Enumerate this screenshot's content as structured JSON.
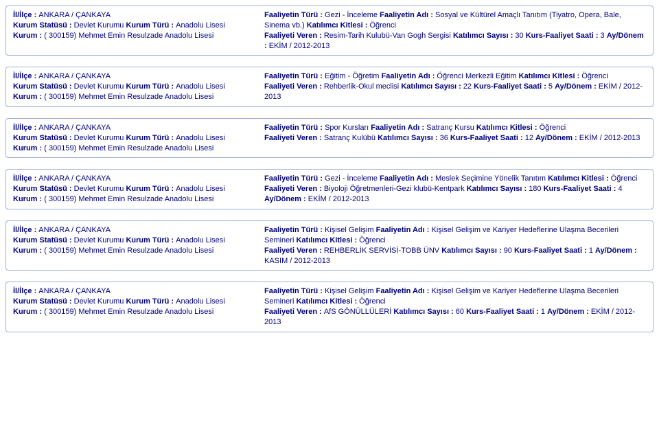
{
  "labels": {
    "il_ilce": "İl/İlçe : ",
    "kurum_statusu": "Kurum Statüsü : ",
    "kurum_turu": "Kurum Türü : ",
    "kurum": "Kurum : ",
    "faaliyetin_turu": "Faaliyetin Türü : ",
    "faaliyetin_adi": "Faaliyetin Adı : ",
    "katilimci_kitlesi": "Katılımcı Kitlesi : ",
    "faaliyeti_veren": "Faaliyeti Veren : ",
    "katilimci_sayisi": "Katılımcı Sayısı : ",
    "kurs_faaliyet_saati": "Kurs-Faaliyet Saati",
    "kurs_faaliyet_saati_colon": "Kurs-Faaliyet Saati : ",
    "ay_donem": "Ay/Dönem : "
  },
  "left_common": {
    "il_ilce": "ANKARA / ÇANKAYA",
    "kurum_statusu": "Devlet Kurumu ",
    "kurum_turu_val": "Anadolu Lisesi",
    "kurum_val": "( 300159) Mehmet Emin Resulzade Anadolu Lisesi"
  },
  "records": [
    {
      "faaliyetin_turu": "Gezi - İnceleme ",
      "faaliyetin_adi": "Sosyal ve Kültürel Amaçlı Tanıtım (Tiyatro, Opera, Bale, Sinema vb.) ",
      "katilimci_kitlesi": "Öğrenci",
      "faaliyeti_veren": "Resim-Tarih Kulubü-Van Gogh Sergisi ",
      "katilimci_sayisi": "30 ",
      "kurs_faaliyet_saati": "3 ",
      "ay_donem": "EKİM / 2012-2013",
      "style": "lead_colon"
    },
    {
      "faaliyetin_turu": "Eğitim - Öğretim ",
      "faaliyetin_adi": "Öğrenci Merkezli Eğitim ",
      "katilimci_kitlesi": "Öğrenci",
      "faaliyeti_veren": "Rehberlik-Okul meclisi ",
      "katilimci_sayisi": "22 ",
      "kurs_faaliyet_saati": "5",
      "ay_donem": "EKİM / 2012-2013",
      "style": "trail_colon"
    },
    {
      "faaliyetin_turu": "Spor Kursları ",
      "faaliyetin_adi": "Satranç Kursu ",
      "katilimci_kitlesi": "Öğrenci",
      "faaliyeti_veren": "Satranç Kulübü ",
      "katilimci_sayisi": "36 ",
      "kurs_faaliyet_saati": "12 ",
      "ay_donem": "EKİM / 2012-2013",
      "style": "trail_colon"
    },
    {
      "faaliyetin_turu": "Gezi - İnceleme ",
      "faaliyetin_adi": "Meslek Seçimine Yönelik Tanıtım ",
      "katilimci_kitlesi": "Öğrenci",
      "faaliyeti_veren": "Biyoloji Öğretmenleri-Gezi klubü-Kentpark ",
      "katilimci_sayisi": "180 ",
      "kurs_faaliyet_saati": "4 ",
      "ay_donem": "EKİM / 2012-2013",
      "style": "trail_colon_saati"
    },
    {
      "faaliyetin_turu": "Kişisel Gelişim ",
      "faaliyetin_adi": "Kişisel Gelişim ve Kariyer Hedeflerine Ulaşma Becerileri Semineri ",
      "katilimci_kitlesi": "Öğrenci",
      "faaliyeti_veren": "REHBERLİK SERVİSİ-TOBB ÜNV ",
      "katilimci_sayisi": "90 ",
      "kurs_faaliyet_saati": "1",
      "ay_donem": "KASIM / 2012-2013",
      "style": "trail_colon"
    },
    {
      "faaliyetin_turu": "Kişisel Gelişim ",
      "faaliyetin_adi": "Kişisel Gelişim ve Kariyer Hedeflerine Ulaşma Becerileri Semineri ",
      "katilimci_kitlesi": "Öğrenci",
      "faaliyeti_veren": "AfS GÖNÜLLÜLERİ ",
      "katilimci_sayisi": "60 ",
      "kurs_faaliyet_saati": "1 ",
      "ay_donem": "EKİM / 2012-2013",
      "style": "trail_colon"
    }
  ],
  "colors": {
    "text": "#000080",
    "border": "#9db0d3",
    "background": "#ffffff"
  }
}
